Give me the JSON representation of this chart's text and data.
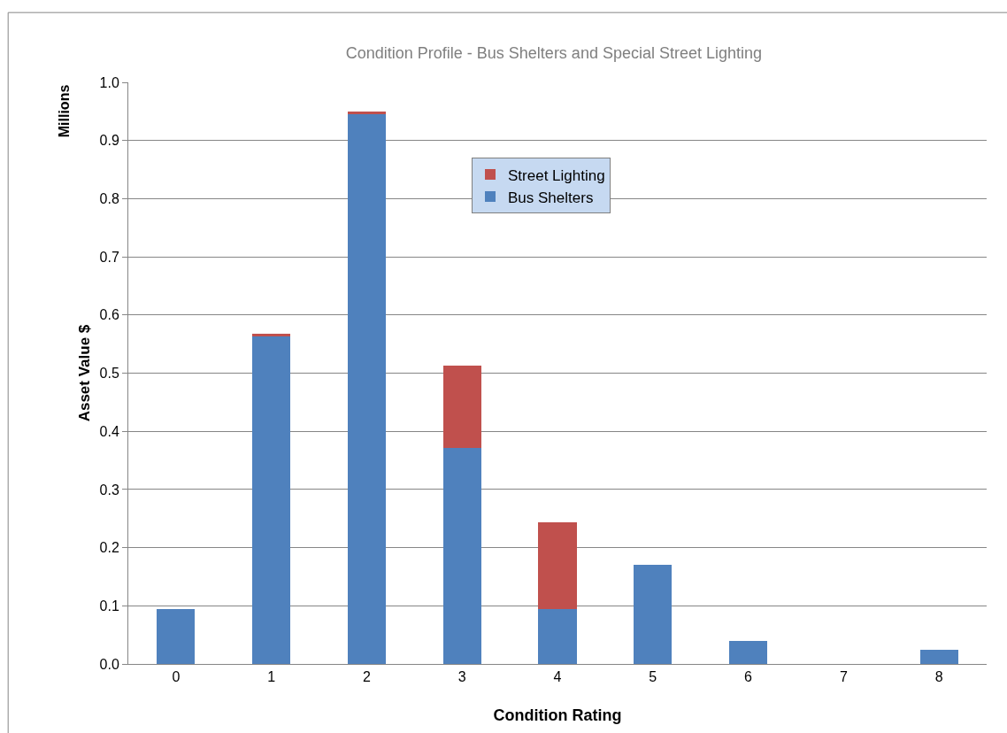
{
  "chart_data": {
    "type": "bar",
    "title": "Condition Profile - Bus Shelters and Special Street Lighting",
    "xlabel": "Condition Rating",
    "ylabel": "Asset Value $",
    "annotations": [
      "Millions"
    ],
    "categories": [
      "0",
      "1",
      "2",
      "3",
      "4",
      "5",
      "6",
      "7",
      "8"
    ],
    "series": [
      {
        "name": "Bus Shelters",
        "color": "#4f81bd",
        "values": [
          0.094,
          0.563,
          0.945,
          0.371,
          0.094,
          0.17,
          0.04,
          0,
          0.024
        ]
      },
      {
        "name": "Street Lighting",
        "color": "#c0504d",
        "values": [
          0,
          0.005,
          0.005,
          0.142,
          0.15,
          0,
          0,
          0,
          0
        ]
      }
    ],
    "stacked": true,
    "ylim": [
      0,
      1.0
    ],
    "yticks": [
      {
        "value": 0,
        "label": "0.0"
      },
      {
        "value": 0.1,
        "label": "0.1"
      },
      {
        "value": 0.2,
        "label": "0.2"
      },
      {
        "value": 0.3,
        "label": "0.3"
      },
      {
        "value": 0.4,
        "label": "0.4"
      },
      {
        "value": 0.5,
        "label": "0.5"
      },
      {
        "value": 0.6,
        "label": "0.6"
      },
      {
        "value": 0.7,
        "label": "0.7"
      },
      {
        "value": 0.8,
        "label": "0.8"
      },
      {
        "value": 0.9,
        "label": "0.9"
      },
      {
        "value": 1.0,
        "label": "1.0"
      }
    ],
    "grid": "y",
    "legend": "top center"
  }
}
